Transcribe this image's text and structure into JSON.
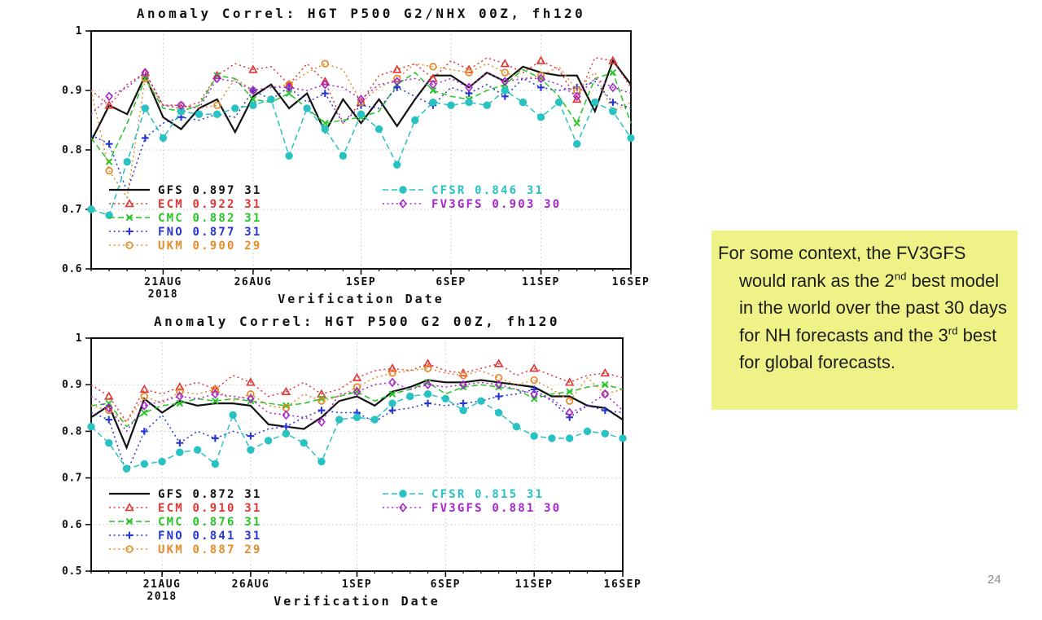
{
  "page": {
    "number": "24",
    "background": "#ffffff"
  },
  "note": {
    "background": "#eff287",
    "part1": "For some context, the FV3GFS would rank as the 2",
    "sup1": "nd",
    "part2": " best model in the world over the past 30 days for NH forecasts and the 3",
    "sup2": "rd",
    "part3": " best for global forecasts."
  },
  "chart_data": [
    {
      "type": "line",
      "title": "Anomaly Correl: HGT P500 G2/NHX 00Z, fh120",
      "xlabel": "Verification Date",
      "ylabel": "",
      "ylim": [
        0.6,
        1.0
      ],
      "grid": true,
      "legend_position": "inside-lower-left-two-columns",
      "n_points": 31,
      "xticks": [
        {
          "i": 4,
          "label": "21AUG",
          "sub": "2018"
        },
        {
          "i": 9,
          "label": "26AUG"
        },
        {
          "i": 15,
          "label": "1SEP"
        },
        {
          "i": 20,
          "label": "6SEP"
        },
        {
          "i": 25,
          "label": "11SEP"
        },
        {
          "i": 30,
          "label": "16SEP"
        }
      ],
      "series": [
        {
          "name": "GFS",
          "score": "0.897",
          "count": "31",
          "color": "#111111",
          "line": "solid",
          "marker": "none",
          "marker_every": 0,
          "values": [
            0.815,
            0.875,
            0.86,
            0.925,
            0.855,
            0.835,
            0.87,
            0.885,
            0.83,
            0.89,
            0.91,
            0.87,
            0.895,
            0.83,
            0.885,
            0.845,
            0.885,
            0.84,
            0.885,
            0.925,
            0.925,
            0.905,
            0.93,
            0.915,
            0.94,
            0.93,
            0.925,
            0.925,
            0.865,
            0.95,
            0.91
          ]
        },
        {
          "name": "ECM",
          "score": "0.922",
          "count": "31",
          "color": "#e23434",
          "line": "dotted",
          "marker": "triangle",
          "marker_every": 2,
          "values": [
            0.9,
            0.875,
            0.91,
            0.93,
            0.875,
            0.87,
            0.88,
            0.925,
            0.945,
            0.935,
            0.94,
            0.91,
            0.945,
            0.915,
            0.845,
            0.88,
            0.925,
            0.935,
            0.945,
            0.92,
            0.95,
            0.935,
            0.955,
            0.945,
            0.93,
            0.95,
            0.935,
            0.885,
            0.955,
            0.95,
            0.905
          ]
        },
        {
          "name": "CMC",
          "score": "0.882",
          "count": "31",
          "color": "#27c427",
          "line": "dashed",
          "marker": "x",
          "marker_every": 2,
          "values": [
            0.82,
            0.78,
            0.845,
            0.92,
            0.87,
            0.865,
            0.875,
            0.925,
            0.92,
            0.885,
            0.88,
            0.895,
            0.87,
            0.845,
            0.85,
            0.855,
            0.865,
            0.91,
            0.93,
            0.9,
            0.89,
            0.885,
            0.9,
            0.91,
            0.935,
            0.92,
            0.89,
            0.845,
            0.92,
            0.93,
            0.845
          ]
        },
        {
          "name": "FNO",
          "score": "0.877",
          "count": "31",
          "color": "#2736d2",
          "line": "dotted",
          "marker": "plus",
          "marker_every": 2,
          "values": [
            0.825,
            0.81,
            0.73,
            0.82,
            0.845,
            0.855,
            0.85,
            0.86,
            0.855,
            0.9,
            0.885,
            0.905,
            0.88,
            0.895,
            0.845,
            0.875,
            0.87,
            0.905,
            0.89,
            0.875,
            0.905,
            0.895,
            0.91,
            0.89,
            0.92,
            0.905,
            0.9,
            0.905,
            0.915,
            0.88,
            0.87
          ]
        },
        {
          "name": "UKM",
          "score": "0.900",
          "count": "29",
          "color": "#e58b2a",
          "line": "dotted",
          "marker": "circle-open",
          "marker_every": 2,
          "values": [
            0.9,
            0.765,
            0.72,
            0.92,
            0.875,
            0.875,
            0.87,
            0.875,
            0.92,
            0.9,
            0.905,
            0.91,
            0.93,
            0.945,
            0.935,
            0.88,
            0.905,
            0.92,
            0.945,
            0.94,
            0.935,
            0.93,
            0.945,
            0.93,
            0.92,
            0.925,
            0.94,
            0.9,
            0.93,
            0.865,
            0.88
          ]
        },
        {
          "name": "CFSR",
          "score": "0.846",
          "count": "31",
          "color": "#29c2c2",
          "line": "dashed",
          "marker": "circle-filled",
          "marker_every": 1,
          "values": [
            0.7,
            0.69,
            0.78,
            0.87,
            0.82,
            0.865,
            0.86,
            0.86,
            0.87,
            0.875,
            0.885,
            0.79,
            0.87,
            0.835,
            0.79,
            0.86,
            0.835,
            0.775,
            0.85,
            0.88,
            0.875,
            0.88,
            0.875,
            0.9,
            0.88,
            0.855,
            0.88,
            0.81,
            0.88,
            0.865,
            0.82
          ]
        },
        {
          "name": "FV3GFS",
          "score": "0.903",
          "count": "30",
          "color": "#a427cb",
          "line": "dotted",
          "marker": "diamond",
          "marker_every": 2,
          "values": [
            0.86,
            0.89,
            0.905,
            0.93,
            0.875,
            0.875,
            0.87,
            0.92,
            0.915,
            0.9,
            0.905,
            0.905,
            0.9,
            0.91,
            0.905,
            0.885,
            0.91,
            0.915,
            0.92,
            0.91,
            0.92,
            0.905,
            0.93,
            0.915,
            0.92,
            0.92,
            0.91,
            0.89,
            0.92,
            0.905,
            0.895
          ]
        }
      ]
    },
    {
      "type": "line",
      "title": "Anomaly Correl: HGT P500 G2 00Z, fh120",
      "xlabel": "Verification Date",
      "ylabel": "",
      "ylim": [
        0.5,
        1.0
      ],
      "grid": true,
      "legend_position": "inside-lower-left-two-columns",
      "n_points": 31,
      "xticks": [
        {
          "i": 4,
          "label": "21AUG",
          "sub": "2018"
        },
        {
          "i": 9,
          "label": "26AUG"
        },
        {
          "i": 15,
          "label": "1SEP"
        },
        {
          "i": 20,
          "label": "6SEP"
        },
        {
          "i": 25,
          "label": "11SEP"
        },
        {
          "i": 30,
          "label": "16SEP"
        }
      ],
      "series": [
        {
          "name": "GFS",
          "score": "0.872",
          "count": "31",
          "color": "#111111",
          "line": "solid",
          "marker": "none",
          "marker_every": 0,
          "values": [
            0.83,
            0.855,
            0.765,
            0.87,
            0.84,
            0.865,
            0.855,
            0.86,
            0.86,
            0.855,
            0.815,
            0.81,
            0.805,
            0.83,
            0.865,
            0.875,
            0.855,
            0.885,
            0.895,
            0.91,
            0.905,
            0.905,
            0.91,
            0.905,
            0.9,
            0.895,
            0.875,
            0.875,
            0.855,
            0.85,
            0.825
          ]
        },
        {
          "name": "ECM",
          "score": "0.910",
          "count": "31",
          "color": "#e23434",
          "line": "dotted",
          "marker": "triangle",
          "marker_every": 2,
          "values": [
            0.9,
            0.875,
            0.82,
            0.89,
            0.88,
            0.895,
            0.905,
            0.89,
            0.92,
            0.905,
            0.875,
            0.885,
            0.905,
            0.88,
            0.89,
            0.915,
            0.93,
            0.935,
            0.93,
            0.945,
            0.93,
            0.925,
            0.935,
            0.945,
            0.92,
            0.935,
            0.92,
            0.905,
            0.92,
            0.925,
            0.915
          ]
        },
        {
          "name": "CMC",
          "score": "0.876",
          "count": "31",
          "color": "#27c427",
          "line": "dashed",
          "marker": "x",
          "marker_every": 2,
          "values": [
            0.855,
            0.86,
            0.81,
            0.84,
            0.855,
            0.86,
            0.87,
            0.865,
            0.87,
            0.865,
            0.86,
            0.855,
            0.86,
            0.87,
            0.875,
            0.885,
            0.865,
            0.88,
            0.89,
            0.905,
            0.88,
            0.895,
            0.9,
            0.895,
            0.89,
            0.87,
            0.88,
            0.885,
            0.895,
            0.9,
            0.89
          ]
        },
        {
          "name": "FNO",
          "score": "0.841",
          "count": "31",
          "color": "#2736d2",
          "line": "dotted",
          "marker": "plus",
          "marker_every": 2,
          "values": [
            0.84,
            0.825,
            0.71,
            0.8,
            0.835,
            0.775,
            0.8,
            0.785,
            0.8,
            0.79,
            0.805,
            0.81,
            0.83,
            0.845,
            0.84,
            0.84,
            0.82,
            0.845,
            0.85,
            0.86,
            0.855,
            0.86,
            0.865,
            0.875,
            0.88,
            0.89,
            0.865,
            0.83,
            0.855,
            0.845,
            0.84
          ]
        },
        {
          "name": "UKM",
          "score": "0.887",
          "count": "29",
          "color": "#e58b2a",
          "line": "dotted",
          "marker": "circle-open",
          "marker_every": 2,
          "values": [
            0.855,
            0.845,
            0.82,
            0.875,
            0.86,
            0.885,
            0.88,
            0.89,
            0.865,
            0.88,
            0.855,
            0.85,
            0.88,
            0.865,
            0.875,
            0.895,
            0.915,
            0.925,
            0.93,
            0.935,
            0.925,
            0.92,
            0.93,
            0.915,
            0.9,
            0.91,
            0.89,
            0.865,
            0.915,
            0.88,
            0.89
          ]
        },
        {
          "name": "CFSR",
          "score": "0.815",
          "count": "31",
          "color": "#29c2c2",
          "line": "dashed",
          "marker": "circle-filled",
          "marker_every": 1,
          "values": [
            0.81,
            0.775,
            0.72,
            0.73,
            0.735,
            0.755,
            0.76,
            0.73,
            0.835,
            0.76,
            0.78,
            0.795,
            0.775,
            0.735,
            0.825,
            0.83,
            0.825,
            0.86,
            0.875,
            0.88,
            0.87,
            0.845,
            0.865,
            0.84,
            0.81,
            0.79,
            0.785,
            0.785,
            0.8,
            0.795,
            0.785
          ]
        },
        {
          "name": "FV3GFS",
          "score": "0.881",
          "count": "30",
          "color": "#a427cb",
          "line": "dotted",
          "marker": "diamond",
          "marker_every": 2,
          "values": [
            0.875,
            0.85,
            0.8,
            0.855,
            0.865,
            0.875,
            0.87,
            0.88,
            0.875,
            0.87,
            0.84,
            0.835,
            0.83,
            0.82,
            0.88,
            0.885,
            0.9,
            0.905,
            0.89,
            0.9,
            0.895,
            0.9,
            0.905,
            0.9,
            0.89,
            0.88,
            0.87,
            0.84,
            0.855,
            0.88,
            0.845
          ]
        }
      ]
    }
  ]
}
